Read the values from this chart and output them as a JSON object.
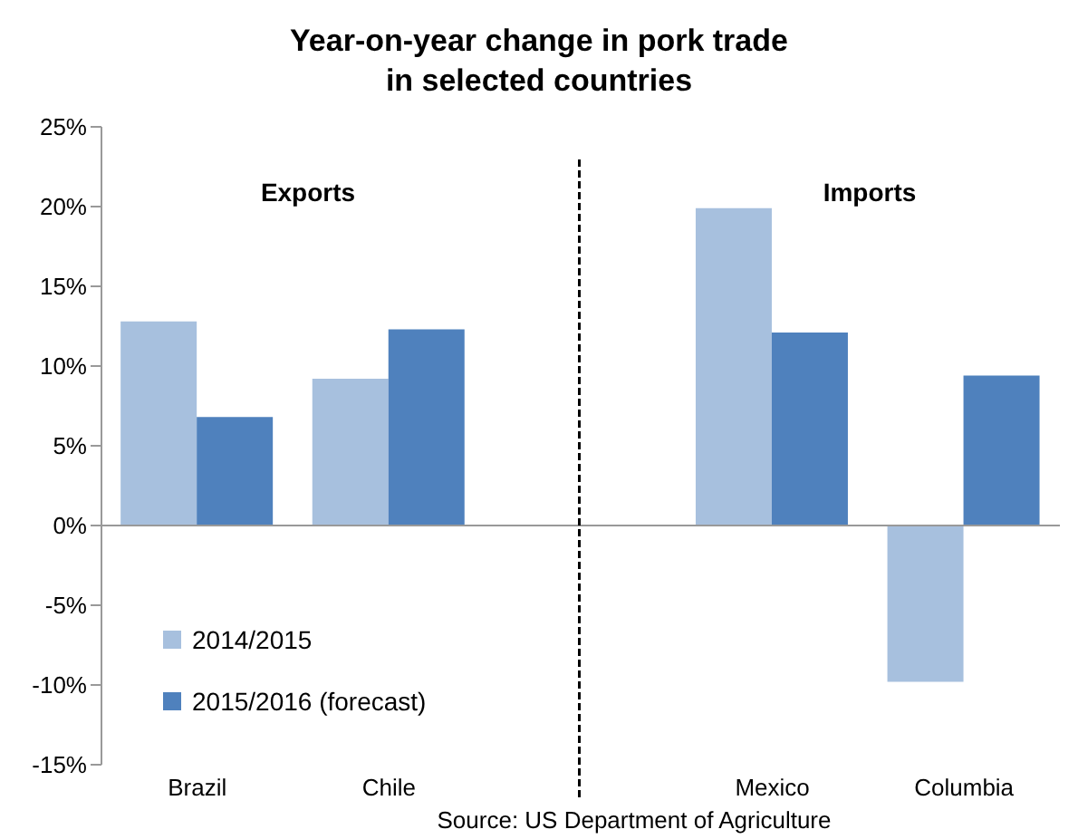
{
  "chart_data": {
    "type": "bar",
    "title": "Year-on-year change in pork trade\nin selected countries",
    "categories": [
      "Brazil",
      "Chile",
      null,
      "Mexico",
      "Columbia"
    ],
    "series": [
      {
        "name": "2014/2015",
        "color": "#a7c0de",
        "values": [
          12.8,
          9.2,
          null,
          19.9,
          -9.8
        ]
      },
      {
        "name": "2015/2016 (forecast)",
        "color": "#4f81bd",
        "values": [
          6.8,
          12.3,
          null,
          12.1,
          9.4
        ]
      }
    ],
    "ylim": [
      -15,
      25
    ],
    "yticks": [
      {
        "value": -15,
        "label": "-15%"
      },
      {
        "value": -10,
        "label": "-10%"
      },
      {
        "value": -5,
        "label": "-5%"
      },
      {
        "value": 0,
        "label": "0%"
      },
      {
        "value": 5,
        "label": "5%"
      },
      {
        "value": 10,
        "label": "10%"
      },
      {
        "value": 15,
        "label": "15%"
      },
      {
        "value": 20,
        "label": "20%"
      },
      {
        "value": 25,
        "label": "25%"
      }
    ],
    "annotations": [
      "Exports",
      "Imports",
      "Source: US Department of Agriculture"
    ],
    "legend": "bottom left"
  }
}
